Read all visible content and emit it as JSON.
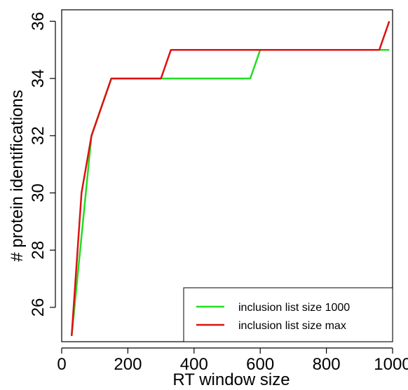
{
  "chart_data": {
    "type": "line",
    "title": "",
    "xlabel": "RT window size",
    "ylabel": "# protein identifications",
    "xlim": [
      0,
      1000
    ],
    "ylim": [
      24.8,
      36.4
    ],
    "xticks": [
      0,
      200,
      400,
      600,
      800,
      1000
    ],
    "yticks": [
      26,
      28,
      30,
      32,
      34,
      36
    ],
    "grid": false,
    "legend_position": "bottom-right",
    "series": [
      {
        "name": "inclusion list size 1000",
        "color": "#22dd22",
        "x": [
          30,
          90,
          150,
          570,
          600,
          990
        ],
        "y": [
          25,
          32,
          34,
          34,
          35,
          35
        ]
      },
      {
        "name": "inclusion list size max",
        "color": "#dd1111",
        "x": [
          30,
          60,
          90,
          150,
          300,
          330,
          960,
          990
        ],
        "y": [
          25,
          30,
          32,
          34,
          34,
          35,
          35,
          36
        ]
      }
    ],
    "legend_order": [
      0,
      1
    ]
  }
}
